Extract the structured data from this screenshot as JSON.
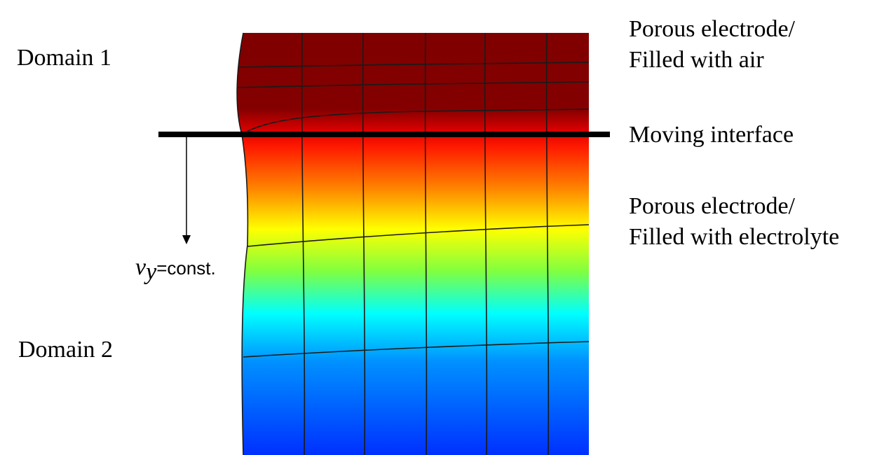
{
  "labels": {
    "domain_1": "Domain 1",
    "domain_2": "Domain 2",
    "interface": "Moving interface",
    "upper_region": [
      "Porous electrode/",
      "Filled with air"
    ],
    "lower_region": [
      "Porous electrode/",
      "Filled with electrolyte"
    ],
    "velocity": {
      "symbol": "v",
      "subscript": "y",
      "text": "=const."
    }
  }
}
